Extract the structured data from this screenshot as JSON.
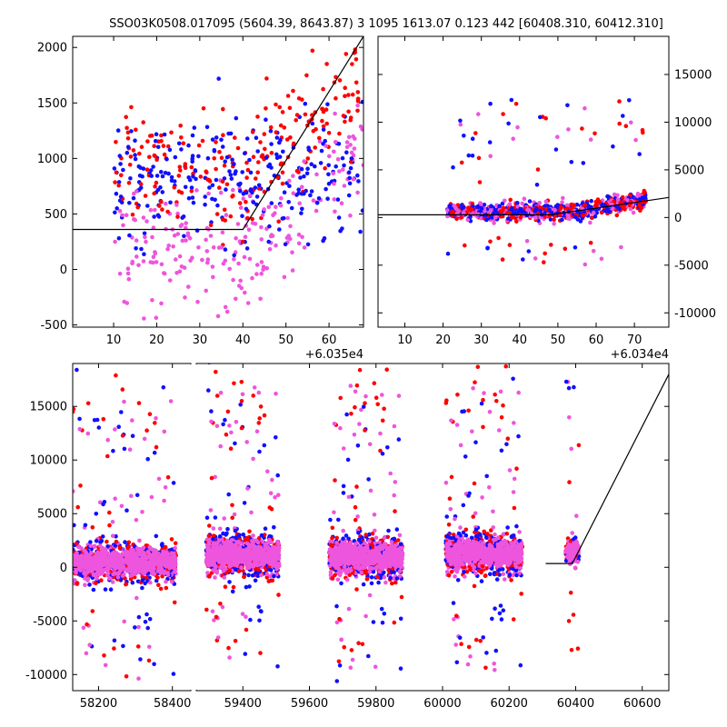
{
  "title": "SSO03K0508.017095 (5604.39, 8643.87)    3 1095 1613.07 0.123 442 [60408.310, 60412.310]",
  "colors": {
    "blue": "#1010ff",
    "red": "#ff0000",
    "magenta": "#ee55dd",
    "line": "#000000"
  },
  "chart_data": [
    {
      "type": "scatter",
      "panel": "top-left",
      "xlim": [
        0.5,
        68
      ],
      "ylim": [
        -520,
        2100
      ],
      "x_offset_label": "+6.035e4",
      "xticks": [
        10,
        20,
        30,
        40,
        50,
        60
      ],
      "yticks": [
        -500,
        0,
        500,
        1000,
        1500,
        2000
      ],
      "ytick_side": "left",
      "x_range": [
        10,
        68
      ],
      "point_density": "high",
      "model_line": [
        [
          0,
          360
        ],
        [
          40,
          360
        ],
        [
          68,
          2100
        ]
      ],
      "grid": false
    },
    {
      "type": "scatter",
      "panel": "top-right",
      "xlim": [
        3,
        79
      ],
      "ylim": [
        -11500,
        19000
      ],
      "x_offset_label": "+6.034e4",
      "xticks": [
        10,
        20,
        30,
        40,
        50,
        60,
        70
      ],
      "yticks": [
        -10000,
        -5000,
        0,
        5000,
        10000,
        15000
      ],
      "ytick_side": "right",
      "x_range": [
        21,
        73
      ],
      "model_line": [
        [
          0,
          280
        ],
        [
          48,
          280
        ],
        [
          79,
          2100
        ]
      ],
      "grid": false
    },
    {
      "type": "scatter",
      "panel": "bottom",
      "broken_x_axis": true,
      "segments": [
        {
          "xlim": [
            58130,
            58450
          ],
          "xticks": [
            58200,
            58400
          ]
        },
        {
          "xlim": [
            59260,
            60680
          ],
          "xticks": [
            59400,
            59600,
            59800,
            60000,
            60200,
            60400,
            60600
          ]
        }
      ],
      "ylim": [
        -11500,
        19000
      ],
      "yticks": [
        -10000,
        -5000,
        0,
        5000,
        10000,
        15000
      ],
      "ytick_side": "left",
      "clusters": [
        {
          "x_range": [
            58130,
            58410
          ],
          "center": 500
        },
        {
          "x_range": [
            59290,
            59510
          ],
          "center": 1200
        },
        {
          "x_range": [
            59660,
            59880
          ],
          "center": 1000
        },
        {
          "x_range": [
            60010,
            60240
          ],
          "center": 1300
        },
        {
          "x_range": [
            60370,
            60410
          ],
          "center": 1500
        }
      ],
      "model_line": [
        [
          60310,
          350
        ],
        [
          60390,
          350
        ],
        [
          60680,
          18000
        ]
      ],
      "grid": false
    }
  ]
}
